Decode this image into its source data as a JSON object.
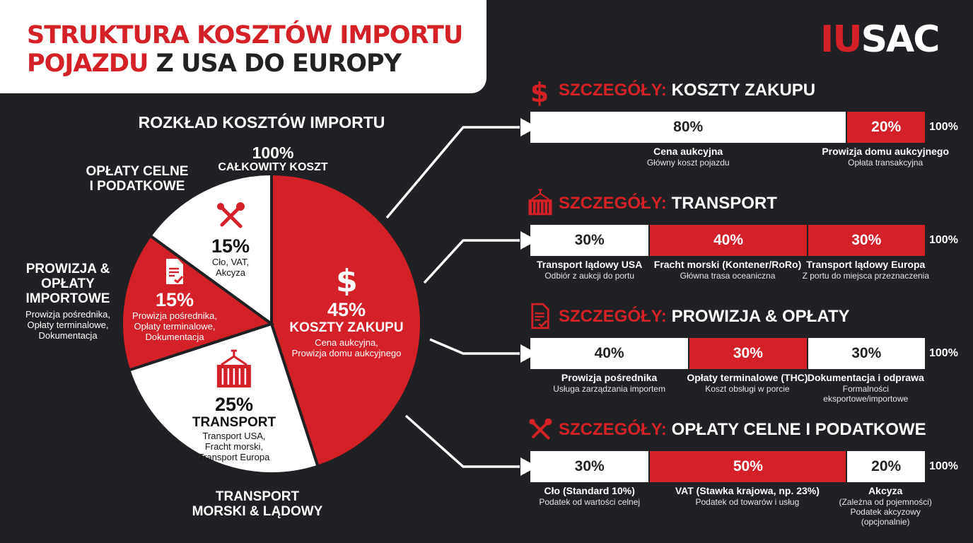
{
  "header": {
    "title_line1": "STRUKTURA KOSZTÓW IMPORTU",
    "title_line2_red": "POJAZDU",
    "title_line2_rest": " Z USA DO EUROPY",
    "logo_red": "IU",
    "logo_white": "SAC"
  },
  "colors": {
    "accent": "#d42027",
    "background": "#1f2124",
    "white": "#ffffff"
  },
  "pie": {
    "title": "ROZKŁAD KOSZTÓW IMPORTU",
    "total_pct": "100%",
    "total_label": "CAŁKOWITY KOSZT",
    "segments": [
      {
        "pct": "45%",
        "name": "KOSZTY ZAKUPU",
        "desc1": "Cena aukcyjna,",
        "desc2": "Prowizja domu aukcyjnego",
        "icon": "dollar-icon"
      },
      {
        "pct": "25%",
        "name": "TRANSPORT",
        "desc1": "Transport USA,",
        "desc2": "Fracht morski,",
        "desc3": "Transport Europa",
        "icon": "container-icon"
      },
      {
        "pct": "15%",
        "desc1": "Prowizja pośrednika,",
        "desc2": "Opłaty terminalowe,",
        "desc3": "Dokumentacja",
        "icon": "document-icon"
      },
      {
        "pct": "15%",
        "desc1": "Cło, VAT,",
        "desc2": "Akcyza",
        "icon": "tools-icon"
      }
    ],
    "outer_labels": {
      "customs_line1": "OPŁATY CELNE",
      "customs_line2": "I PODATKOWE",
      "commission_line1": "PROWIZJA &",
      "commission_line2": "OPŁATY",
      "commission_line3": "IMPORTOWE",
      "commission_desc1": "Prowizja pośrednika,",
      "commission_desc2": "Opłaty terminalowe,",
      "commission_desc3": "Dokumentacja",
      "transport_line1": "TRANSPORT",
      "transport_line2": "MORSKI & LĄDOWY"
    }
  },
  "chart_data": [
    {
      "type": "pie",
      "title": "ROZKŁAD KOSZTÓW IMPORTU",
      "categories": [
        "KOSZTY ZAKUPU",
        "TRANSPORT",
        "PROWIZJA & OPŁATY IMPORTOWE",
        "OPŁATY CELNE I PODATKOWE"
      ],
      "values": [
        45,
        25,
        15,
        15
      ]
    },
    {
      "type": "bar",
      "title": "SZCZEGÓŁY: KOSZTY ZAKUPU",
      "categories": [
        "Cena aukcyjna",
        "Prowizja domu aukcyjnego"
      ],
      "values": [
        80,
        20
      ]
    },
    {
      "type": "bar",
      "title": "SZCZEGÓŁY: TRANSPORT",
      "categories": [
        "Transport lądowy USA",
        "Fracht morski (Kontener/RoRo)",
        "Transport lądowy Europa"
      ],
      "values": [
        30,
        40,
        30
      ]
    },
    {
      "type": "bar",
      "title": "SZCZEGÓŁY: PROWIZJA & OPŁATY",
      "categories": [
        "Prowizja pośrednika",
        "Opłaty terminalowe (THC)",
        "Dokumentacja i odprawa"
      ],
      "values": [
        40,
        30,
        30
      ]
    },
    {
      "type": "bar",
      "title": "SZCZEGÓŁY: OPŁATY CELNE I PODATKOWE",
      "categories": [
        "Cło (Standard 10%)",
        "VAT (Stawka krajowa, np. 23%)",
        "Akcyza"
      ],
      "values": [
        30,
        50,
        20
      ]
    }
  ],
  "sections": [
    {
      "prefix": "SZCZEGÓŁY:",
      "title": "KOSZTY ZAKUPU",
      "icon": "dollar-icon",
      "total": "100%",
      "segments": [
        {
          "label": "80%",
          "color": "white",
          "name": "Cena aukcyjna",
          "desc": "Główny koszt pojazdu"
        },
        {
          "label": "20%",
          "color": "red",
          "name": "Prowizja domu aukcyjnego",
          "desc": "Opłata transakcyjna"
        }
      ]
    },
    {
      "prefix": "SZCZEGÓŁY:",
      "title": "TRANSPORT",
      "icon": "container-icon",
      "total": "100%",
      "segments": [
        {
          "label": "30%",
          "color": "white",
          "name": "Transport lądowy USA",
          "desc": "Odbiór z aukcji do portu"
        },
        {
          "label": "40%",
          "color": "red",
          "name": "Fracht morski (Kontener/RoRo)",
          "desc": "Główna trasa oceaniczna"
        },
        {
          "label": "30%",
          "color": "red",
          "name": "Transport lądowy Europa",
          "desc": "Z portu do miejsca przeznaczenia"
        }
      ]
    },
    {
      "prefix": "SZCZEGÓŁY:",
      "title": "PROWIZJA & OPŁATY",
      "icon": "document-icon",
      "total": "100%",
      "segments": [
        {
          "label": "40%",
          "color": "white",
          "name": "Prowizja pośrednika",
          "desc": "Usługa zarządzania importem"
        },
        {
          "label": "30%",
          "color": "red",
          "name": "Opłaty terminalowe (THC)",
          "desc": "Koszt obsługi w porcie"
        },
        {
          "label": "30%",
          "color": "white",
          "name": "Dokumentacja i odprawa",
          "desc": "Formalności",
          "desc2": "eksportowe/importowe"
        }
      ]
    },
    {
      "prefix": "SZCZEGÓŁY:",
      "title": "OPŁATY CELNE I PODATKOWE",
      "icon": "tools-icon",
      "total": "100%",
      "segments": [
        {
          "label": "30%",
          "color": "white",
          "name": "Cło (Standard 10%)",
          "desc": "Podatek od wartości celnej"
        },
        {
          "label": "50%",
          "color": "red",
          "name": "VAT (Stawka krajowa, np. 23%)",
          "desc": "Podatek od towarów i usług"
        },
        {
          "label": "20%",
          "color": "white",
          "name": "Akcyza",
          "desc": "(Zależna od pojemności)",
          "desc2": "Podatek akcyzowy",
          "desc3": "(opcjonalnie)"
        }
      ]
    }
  ]
}
